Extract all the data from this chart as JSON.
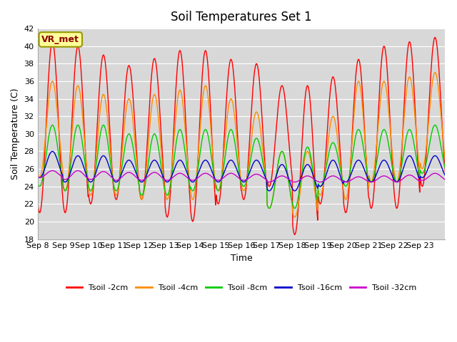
{
  "title": "Soil Temperatures Set 1",
  "xlabel": "Time",
  "ylabel": "Soil Temperature (C)",
  "ylim": [
    18,
    42
  ],
  "yticks": [
    18,
    20,
    22,
    24,
    26,
    28,
    30,
    32,
    34,
    36,
    38,
    40,
    42
  ],
  "x_labels": [
    "Sep 8",
    "Sep 9",
    "Sep 10",
    "Sep 11",
    "Sep 12",
    "Sep 13",
    "Sep 14",
    "Sep 15",
    "Sep 16",
    "Sep 17",
    "Sep 18",
    "Sep 19",
    "Sep 20",
    "Sep 21",
    "Sep 22",
    "Sep 23"
  ],
  "annotation": "VR_met",
  "background_color": "#d8d8d8",
  "line_colors": {
    "Tsoil -2cm": "#ff0000",
    "Tsoil -4cm": "#ff8c00",
    "Tsoil -8cm": "#00cc00",
    "Tsoil -16cm": "#0000cc",
    "Tsoil -32cm": "#cc00cc"
  },
  "n_days": 16,
  "n_points_per_day": 48,
  "peaks_2cm": [
    40.5,
    40.0,
    39.0,
    37.8,
    38.6,
    39.5,
    39.5,
    38.5,
    38.0,
    35.5,
    35.5,
    36.5,
    38.5,
    40.0,
    40.5,
    41.0
  ],
  "troughs_2cm": [
    21.0,
    21.0,
    22.0,
    22.5,
    22.5,
    20.5,
    20.0,
    22.0,
    22.5,
    24.0,
    18.5,
    22.0,
    21.0,
    21.5,
    21.5,
    24.0
  ],
  "peaks_4cm": [
    36.0,
    35.5,
    34.5,
    34.0,
    34.5,
    35.0,
    35.5,
    34.0,
    32.5,
    28.0,
    28.0,
    32.0,
    36.0,
    36.0,
    36.5,
    37.0
  ],
  "troughs_4cm": [
    25.0,
    23.5,
    23.0,
    23.0,
    22.5,
    22.5,
    22.5,
    23.5,
    23.5,
    21.5,
    20.5,
    23.0,
    22.5,
    24.5,
    24.5,
    26.0
  ],
  "peaks_8cm": [
    31.0,
    31.0,
    31.0,
    30.0,
    30.0,
    30.5,
    30.5,
    30.5,
    29.5,
    28.0,
    28.5,
    29.0,
    30.5,
    30.5,
    30.5,
    31.0
  ],
  "troughs_8cm": [
    24.0,
    23.5,
    23.5,
    23.5,
    23.0,
    23.0,
    23.5,
    23.5,
    24.0,
    21.5,
    21.5,
    24.0,
    24.0,
    24.5,
    24.5,
    25.5
  ],
  "peaks_16cm": [
    28.0,
    27.5,
    27.5,
    27.0,
    27.0,
    27.0,
    27.0,
    27.0,
    27.0,
    26.5,
    26.5,
    27.0,
    27.0,
    27.0,
    27.5,
    27.5
  ],
  "troughs_16cm": [
    25.0,
    24.5,
    24.5,
    24.5,
    24.5,
    24.5,
    24.5,
    24.5,
    24.5,
    23.5,
    23.5,
    24.0,
    24.5,
    24.5,
    24.5,
    25.0
  ],
  "peaks_32cm": [
    25.8,
    25.8,
    25.7,
    25.6,
    25.6,
    25.5,
    25.5,
    25.5,
    25.4,
    25.2,
    25.2,
    25.2,
    25.1,
    25.2,
    25.3,
    25.5
  ],
  "troughs_32cm": [
    25.0,
    24.8,
    24.8,
    24.7,
    24.7,
    24.7,
    24.7,
    24.7,
    24.7,
    24.5,
    24.5,
    24.5,
    24.5,
    24.5,
    24.5,
    24.7
  ]
}
